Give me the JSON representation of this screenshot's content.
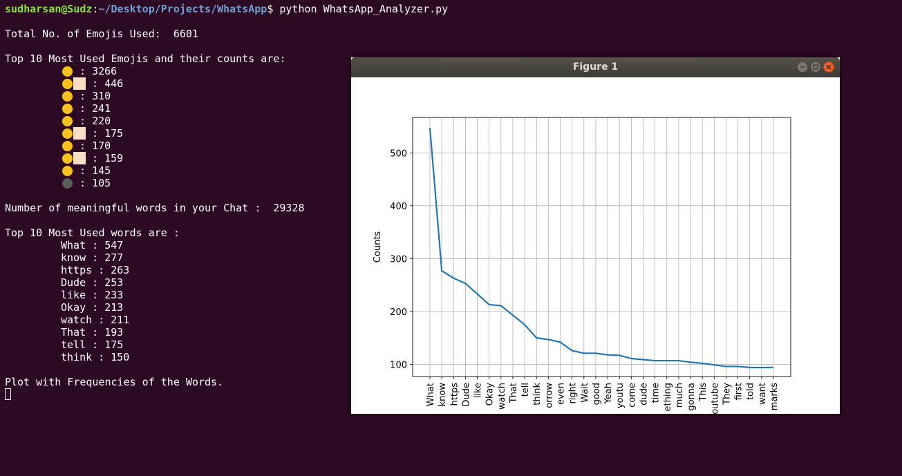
{
  "terminal": {
    "prompt_user": "sudharsan@Sudz",
    "prompt_sep": ":",
    "prompt_path": "~/Desktop/Projects/WhatsApp",
    "prompt_symbol": "$ ",
    "command": "python WhatsApp_Analyzer.py",
    "total_emojis_line": "Total No. of Emojis Used:  6601",
    "top_emojis_header": "Top 10 Most Used Emojis and their counts are:",
    "emojis": [
      {
        "icon": "face-with-tears-of-joy",
        "color": "#f8c21c",
        "has_tone": false,
        "text": " : 3266"
      },
      {
        "icon": "person-facepalming",
        "color": "#f8c21c",
        "has_tone": true,
        "text": " : 446"
      },
      {
        "icon": "face-with-monocle",
        "color": "#f8c21c",
        "has_tone": false,
        "text": " : 310"
      },
      {
        "icon": "thinking-face",
        "color": "#f8c21c",
        "has_tone": false,
        "text": " : 241"
      },
      {
        "icon": "expressionless-face",
        "color": "#f8c21c",
        "has_tone": false,
        "text": " : 220"
      },
      {
        "icon": "person-raising-hand",
        "color": "#f8c21c",
        "has_tone": true,
        "text": " : 175"
      },
      {
        "icon": "rolling-on-floor-laughing",
        "color": "#f8c21c",
        "has_tone": false,
        "text": " : 170"
      },
      {
        "icon": "thumbs-up",
        "color": "#f8c21c",
        "has_tone": true,
        "text": " : 159"
      },
      {
        "icon": "face-with-open-mouth",
        "color": "#f8c21c",
        "has_tone": false,
        "text": " : 145"
      },
      {
        "icon": "new-moon-face",
        "color": "#5b5b5b",
        "has_tone": false,
        "text": " : 105"
      }
    ],
    "meaningful_words_line": "Number of meaningful words in your Chat :  29328",
    "top_words_header": "Top 10 Most Used words are :",
    "words": [
      "What : 547",
      "know : 277",
      "https : 263",
      "Dude : 253",
      "like : 233",
      "Okay : 213",
      "watch : 211",
      "That : 193",
      "tell : 175",
      "think : 150"
    ],
    "plot_line": "Plot with Frequencies of the Words."
  },
  "figure": {
    "title": "Figure 1"
  },
  "chart_data": {
    "type": "line",
    "title": "",
    "xlabel": "",
    "ylabel": "Counts",
    "categories": [
      "What",
      "know",
      "https",
      "Dude",
      "like",
      "Okay",
      "watch",
      "That",
      "tell",
      "think",
      "orrow",
      "even",
      "right",
      "Wait",
      "good",
      "Yeah",
      "youtu",
      "come",
      "dude",
      "time",
      "ething",
      "much",
      "gonna",
      "This",
      "outube",
      "They",
      "first",
      "told",
      "want",
      "marks"
    ],
    "values": [
      547,
      277,
      263,
      253,
      233,
      213,
      211,
      193,
      175,
      150,
      147,
      142,
      126,
      121,
      121,
      118,
      117,
      111,
      109,
      107,
      107,
      107,
      104,
      102,
      99,
      96,
      96,
      94,
      94,
      94
    ],
    "yticks": [
      100,
      200,
      300,
      400,
      500
    ],
    "ylim": [
      77,
      567
    ],
    "grid": true,
    "line_color": "#1f77b4"
  }
}
